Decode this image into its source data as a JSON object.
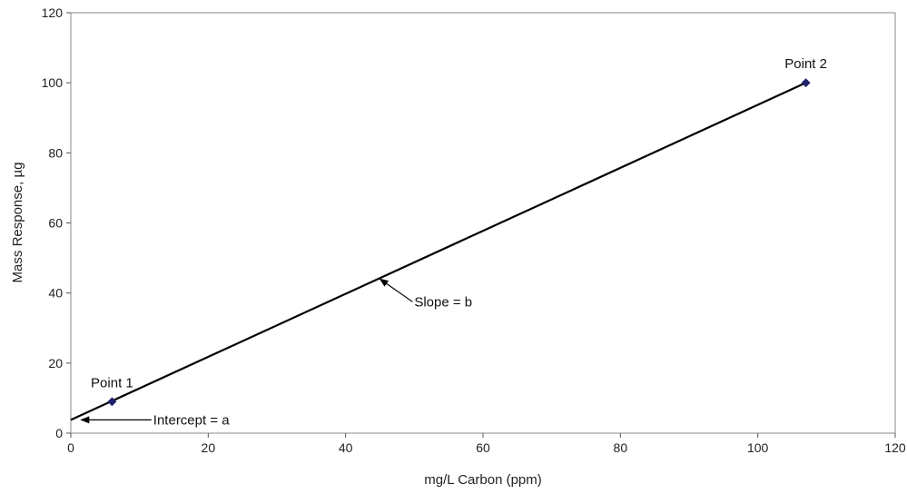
{
  "chart_data": {
    "type": "line",
    "xlabel": "mg/L Carbon (ppm)",
    "ylabel": "Mass Response, µg",
    "xlim": [
      0,
      120
    ],
    "ylim": [
      0,
      120
    ],
    "xticks": [
      0,
      20,
      40,
      60,
      80,
      100,
      120
    ],
    "yticks": [
      0,
      20,
      40,
      60,
      80,
      100,
      120
    ],
    "grid": false,
    "legend": "none",
    "line": {
      "x": [
        0,
        107
      ],
      "y": [
        3.8,
        100
      ],
      "color": "#000000"
    },
    "points": [
      {
        "label": "Point 1",
        "x": 6,
        "y": 9,
        "color": "#1f1f6b"
      },
      {
        "label": "Point 2",
        "x": 107,
        "y": 100,
        "color": "#1f1f6b"
      }
    ],
    "annotations": [
      {
        "label": "Slope = b",
        "target": [
          45,
          44
        ],
        "text_at": [
          50,
          37.5
        ]
      },
      {
        "label": "Intercept = a",
        "target": [
          1.5,
          3.8
        ],
        "text_at": [
          12,
          3.8
        ]
      }
    ]
  }
}
